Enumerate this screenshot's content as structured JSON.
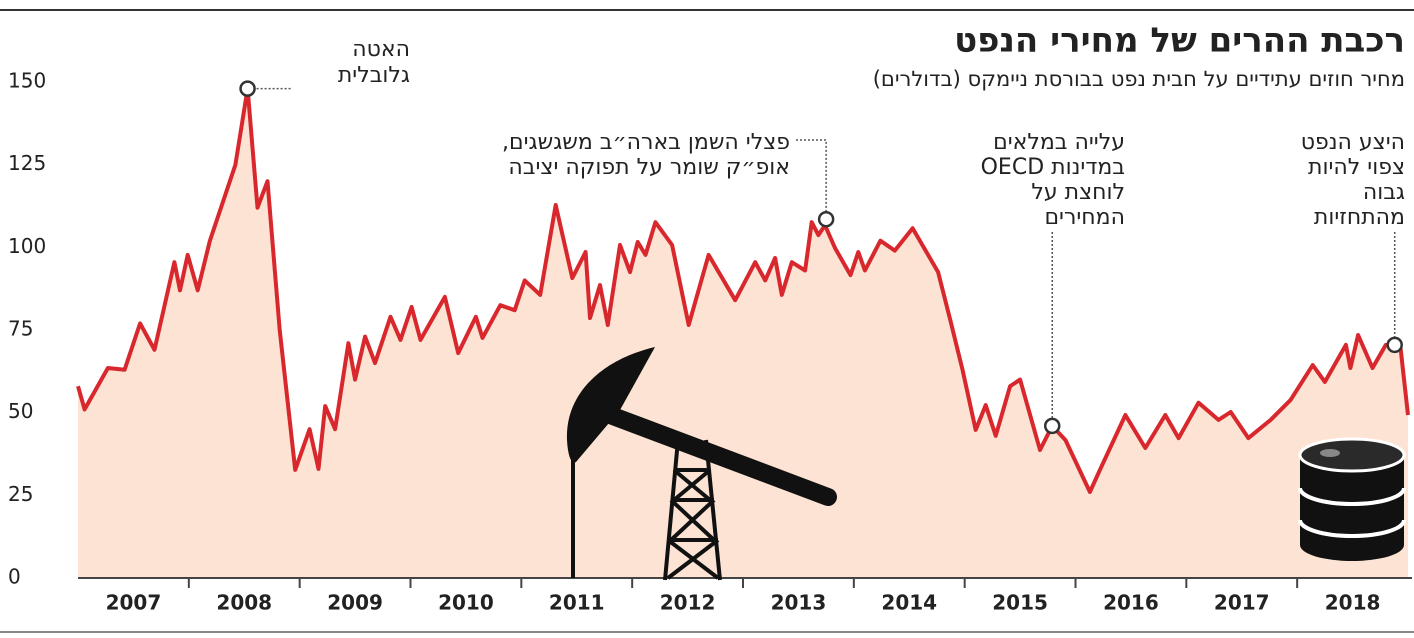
{
  "chart_data": {
    "type": "area",
    "title": "רכבת ההרים של מחירי הנפט",
    "subtitle": "מחיר חוזים עתידיים על חבית נפט בבורסת ניימקס (בדולרים)",
    "x": [
      2007.0,
      2007.06,
      2007.27,
      2007.42,
      2007.56,
      2007.69,
      2007.87,
      2007.92,
      2007.99,
      2008.08,
      2008.19,
      2008.42,
      2008.53,
      2008.62,
      2008.71,
      2008.82,
      2008.96,
      2009.09,
      2009.17,
      2009.23,
      2009.32,
      2009.44,
      2009.5,
      2009.59,
      2009.68,
      2009.82,
      2009.91,
      2010.01,
      2010.09,
      2010.31,
      2010.43,
      2010.59,
      2010.65,
      2010.81,
      2010.94,
      2011.03,
      2011.17,
      2011.31,
      2011.46,
      2011.58,
      2011.62,
      2011.71,
      2011.78,
      2011.89,
      2011.98,
      2012.05,
      2012.12,
      2012.21,
      2012.36,
      2012.51,
      2012.69,
      2012.93,
      2013.11,
      2013.2,
      2013.29,
      2013.35,
      2013.44,
      2013.56,
      2013.62,
      2013.68,
      2013.74,
      2013.83,
      2013.97,
      2014.04,
      2014.1,
      2014.24,
      2014.37,
      2014.53,
      2014.76,
      2014.87,
      2014.98,
      2015.1,
      2015.19,
      2015.28,
      2015.41,
      2015.5,
      2015.68,
      2015.79,
      2015.91,
      2016.13,
      2016.22,
      2016.45,
      2016.63,
      2016.81,
      2016.93,
      2017.11,
      2017.29,
      2017.4,
      2017.56,
      2017.76,
      2017.94,
      2018.14,
      2018.25,
      2018.44,
      2018.48,
      2018.55,
      2018.68,
      2018.8,
      2018.93,
      2019.0
    ],
    "series": [
      {
        "color": "#d8282e",
        "fill": "#fce3d3",
        "values": [
          58,
          51,
          63.5,
          63,
          77,
          69,
          95.5,
          87,
          97.7,
          87,
          102,
          125,
          148,
          112,
          120,
          75,
          32.7,
          45,
          33,
          52,
          45,
          71,
          60,
          73,
          65,
          79,
          72,
          82,
          72,
          85,
          68,
          79,
          72.6,
          82.5,
          81,
          90,
          85.6,
          112.8,
          90.7,
          98.6,
          78.6,
          88.6,
          76.5,
          100.7,
          92.5,
          101.6,
          97.7,
          107.6,
          100.7,
          76.5,
          97.7,
          84,
          95.5,
          90,
          96.8,
          85.6,
          95.5,
          93,
          107.6,
          103.7,
          106.7,
          99.8,
          91.6,
          98.6,
          93,
          102,
          99,
          105.8,
          92.5,
          78,
          63,
          44.8,
          52.3,
          43,
          58,
          60,
          38.7,
          46,
          41.7,
          26,
          32.7,
          49.3,
          39.3,
          49.3,
          42.3,
          53,
          47.8,
          50.2,
          42.3,
          47.8,
          53.8,
          64.4,
          59.3,
          70.5,
          63.5,
          73.5,
          63.5,
          70.5,
          70.5,
          49.3
        ]
      }
    ],
    "xlim": [
      2007,
      2019
    ],
    "xticks": [
      {
        "value": 2007.5,
        "label": "2007"
      },
      {
        "value": 2008.5,
        "label": "2008"
      },
      {
        "value": 2009.5,
        "label": "2009"
      },
      {
        "value": 2010.5,
        "label": "2010"
      },
      {
        "value": 2011.5,
        "label": "2011"
      },
      {
        "value": 2012.5,
        "label": "2012"
      },
      {
        "value": 2013.5,
        "label": "2013"
      },
      {
        "value": 2014.5,
        "label": "2014"
      },
      {
        "value": 2015.5,
        "label": "2015"
      },
      {
        "value": 2016.5,
        "label": "2016"
      },
      {
        "value": 2017.5,
        "label": "2017"
      },
      {
        "value": 2018.5,
        "label": "2018"
      }
    ],
    "ylim": [
      0,
      150
    ],
    "yticks": [
      0,
      25,
      50,
      75,
      100,
      125,
      150
    ],
    "grid": false,
    "annotations": [
      {
        "lines": [
          "האטה",
          "גלובלית"
        ],
        "x": 2008.53,
        "y": 148
      },
      {
        "lines": [
          "פצלי השמן בארה״ב משגשגים,",
          "אופ״ק שומר על תפוקה יציבה"
        ],
        "x": 2013.75,
        "y": 108.5
      },
      {
        "lines": [
          "עלייה במלאים",
          "במדינות OECD",
          "לוחצת על",
          "המחירים"
        ],
        "x": 2015.79,
        "y": 46
      },
      {
        "lines": [
          "היצע הנפט",
          "צפוי להיות",
          "גבוה",
          "מהתחזיות"
        ],
        "x": 2018.88,
        "y": 70.5
      }
    ]
  }
}
